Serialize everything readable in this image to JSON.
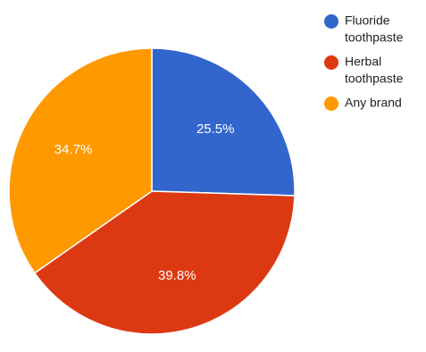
{
  "chart_data": {
    "type": "pie",
    "slices": [
      {
        "label": "Fluoride toothpaste",
        "legend_lines": [
          "Fluoride",
          "toothpaste"
        ],
        "value": 25.5,
        "display": "25.5%",
        "color": "#3366cc"
      },
      {
        "label": "Herbal toothpaste",
        "legend_lines": [
          "Herbal",
          "toothpaste"
        ],
        "value": 39.8,
        "display": "39.8%",
        "color": "#dc3912"
      },
      {
        "label": "Any brand",
        "legend_lines": [
          "Any brand"
        ],
        "value": 34.7,
        "display": "34.7%",
        "color": "#ff9900"
      }
    ],
    "start_angle_deg": 90,
    "direction": "clockwise",
    "legend_position": "right"
  }
}
